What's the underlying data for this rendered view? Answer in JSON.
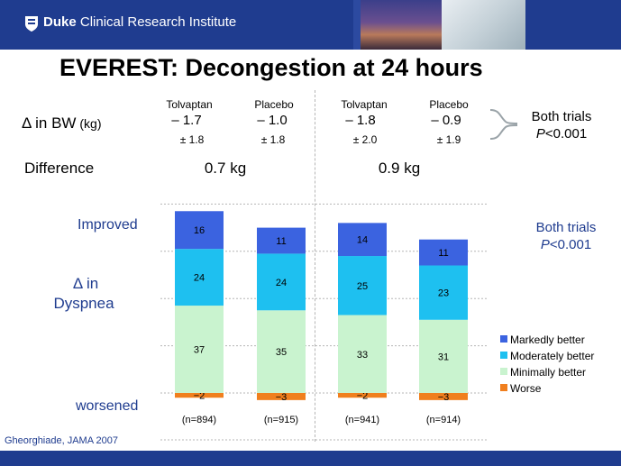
{
  "header": {
    "brand_bold": "Duke",
    "brand_rest": " Clinical Research Institute"
  },
  "title": "EVEREST: Decongestion at 24 hours",
  "table": {
    "columns": [
      "Tolvaptan",
      "Placebo",
      "Tolvaptan",
      "Placebo"
    ],
    "bw_label": "Δ in BW",
    "bw_unit": " (kg)",
    "bw_mean": [
      "–  1.7",
      "–  1.0",
      "–  1.8",
      "–  0.9"
    ],
    "bw_sd": [
      "± 1.8",
      "± 1.8",
      "± 2.0",
      "± 1.9"
    ],
    "difference_label": "Difference",
    "differences": [
      "0.7 kg",
      "0.9 kg"
    ],
    "both_trials_1": "Both trials",
    "p_value_1": "<0.001",
    "p_letter": "P"
  },
  "axis_labels": {
    "improved": "Improved",
    "dyspnea_1": "Δ in",
    "dyspnea_2": "Dyspnea",
    "worsened": "worsened"
  },
  "right_note": {
    "both_trials": "Both trials",
    "p_value": "<0.001",
    "p_letter": "P"
  },
  "footnote": "Gheorghiade, JAMA 2007",
  "colors": {
    "markedly": "#3b63e0",
    "moderately": "#1ec0f0",
    "minimally": "#c9f3cf",
    "worse": "#f07f1e",
    "header": "#1f3c8f"
  },
  "chart_data": {
    "type": "bar",
    "stacked": true,
    "categories": [
      "(n=894)",
      "(n=915)",
      "(n=941)",
      "(n=914)"
    ],
    "series": [
      {
        "name": "Worse",
        "values": [
          -2,
          -3,
          -2,
          -3
        ],
        "labels": [
          "−2",
          "−3",
          "−2",
          "−3"
        ],
        "color": "#f07f1e"
      },
      {
        "name": "Minimally better",
        "values": [
          37,
          35,
          33,
          31
        ],
        "color": "#c9f3cf"
      },
      {
        "name": "Moderately better",
        "values": [
          24,
          24,
          25,
          23
        ],
        "color": "#1ec0f0"
      },
      {
        "name": "Markedly better",
        "values": [
          16,
          11,
          14,
          11
        ],
        "color": "#3b63e0"
      }
    ],
    "legend": [
      "Markedly better",
      "Moderately better",
      "Minimally better",
      "Worse"
    ],
    "legend_position": "right",
    "ylim": [
      -3,
      80
    ],
    "grid": true
  }
}
